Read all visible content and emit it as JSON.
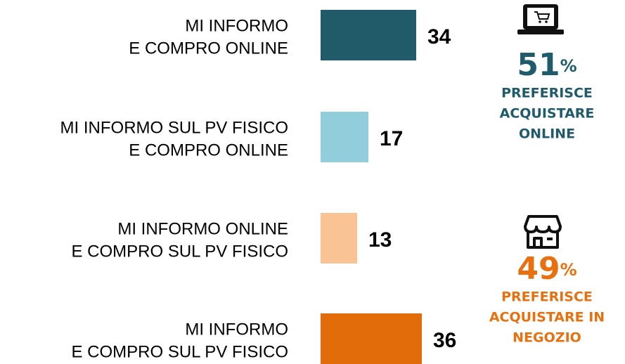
{
  "chart_data": {
    "type": "bar",
    "categories": [
      [
        "MI INFORMO",
        "E COMPRO ONLINE"
      ],
      [
        "MI INFORMO SUL PV FISICO",
        "E COMPRO ONLINE"
      ],
      [
        "MI INFORMO ONLINE",
        "E COMPRO SUL PV FISICO"
      ],
      [
        "MI INFORMO",
        "E COMPRO SUL PV FISICO"
      ]
    ],
    "values": [
      34,
      17,
      13,
      36
    ],
    "colors": [
      "#215a68",
      "#92cddc",
      "#f9c394",
      "#e36c0a"
    ],
    "annotations": [
      {
        "value": 51,
        "unit": "%",
        "lines": [
          "PREFERISCE",
          "ACQUISTARE",
          "ONLINE"
        ],
        "color": "#1f5b6b"
      },
      {
        "value": 49,
        "unit": "%",
        "lines": [
          "PREFERISCE",
          "ACQUISTARE IN",
          "NEGOZIO"
        ],
        "color": "#e8700f"
      }
    ]
  }
}
